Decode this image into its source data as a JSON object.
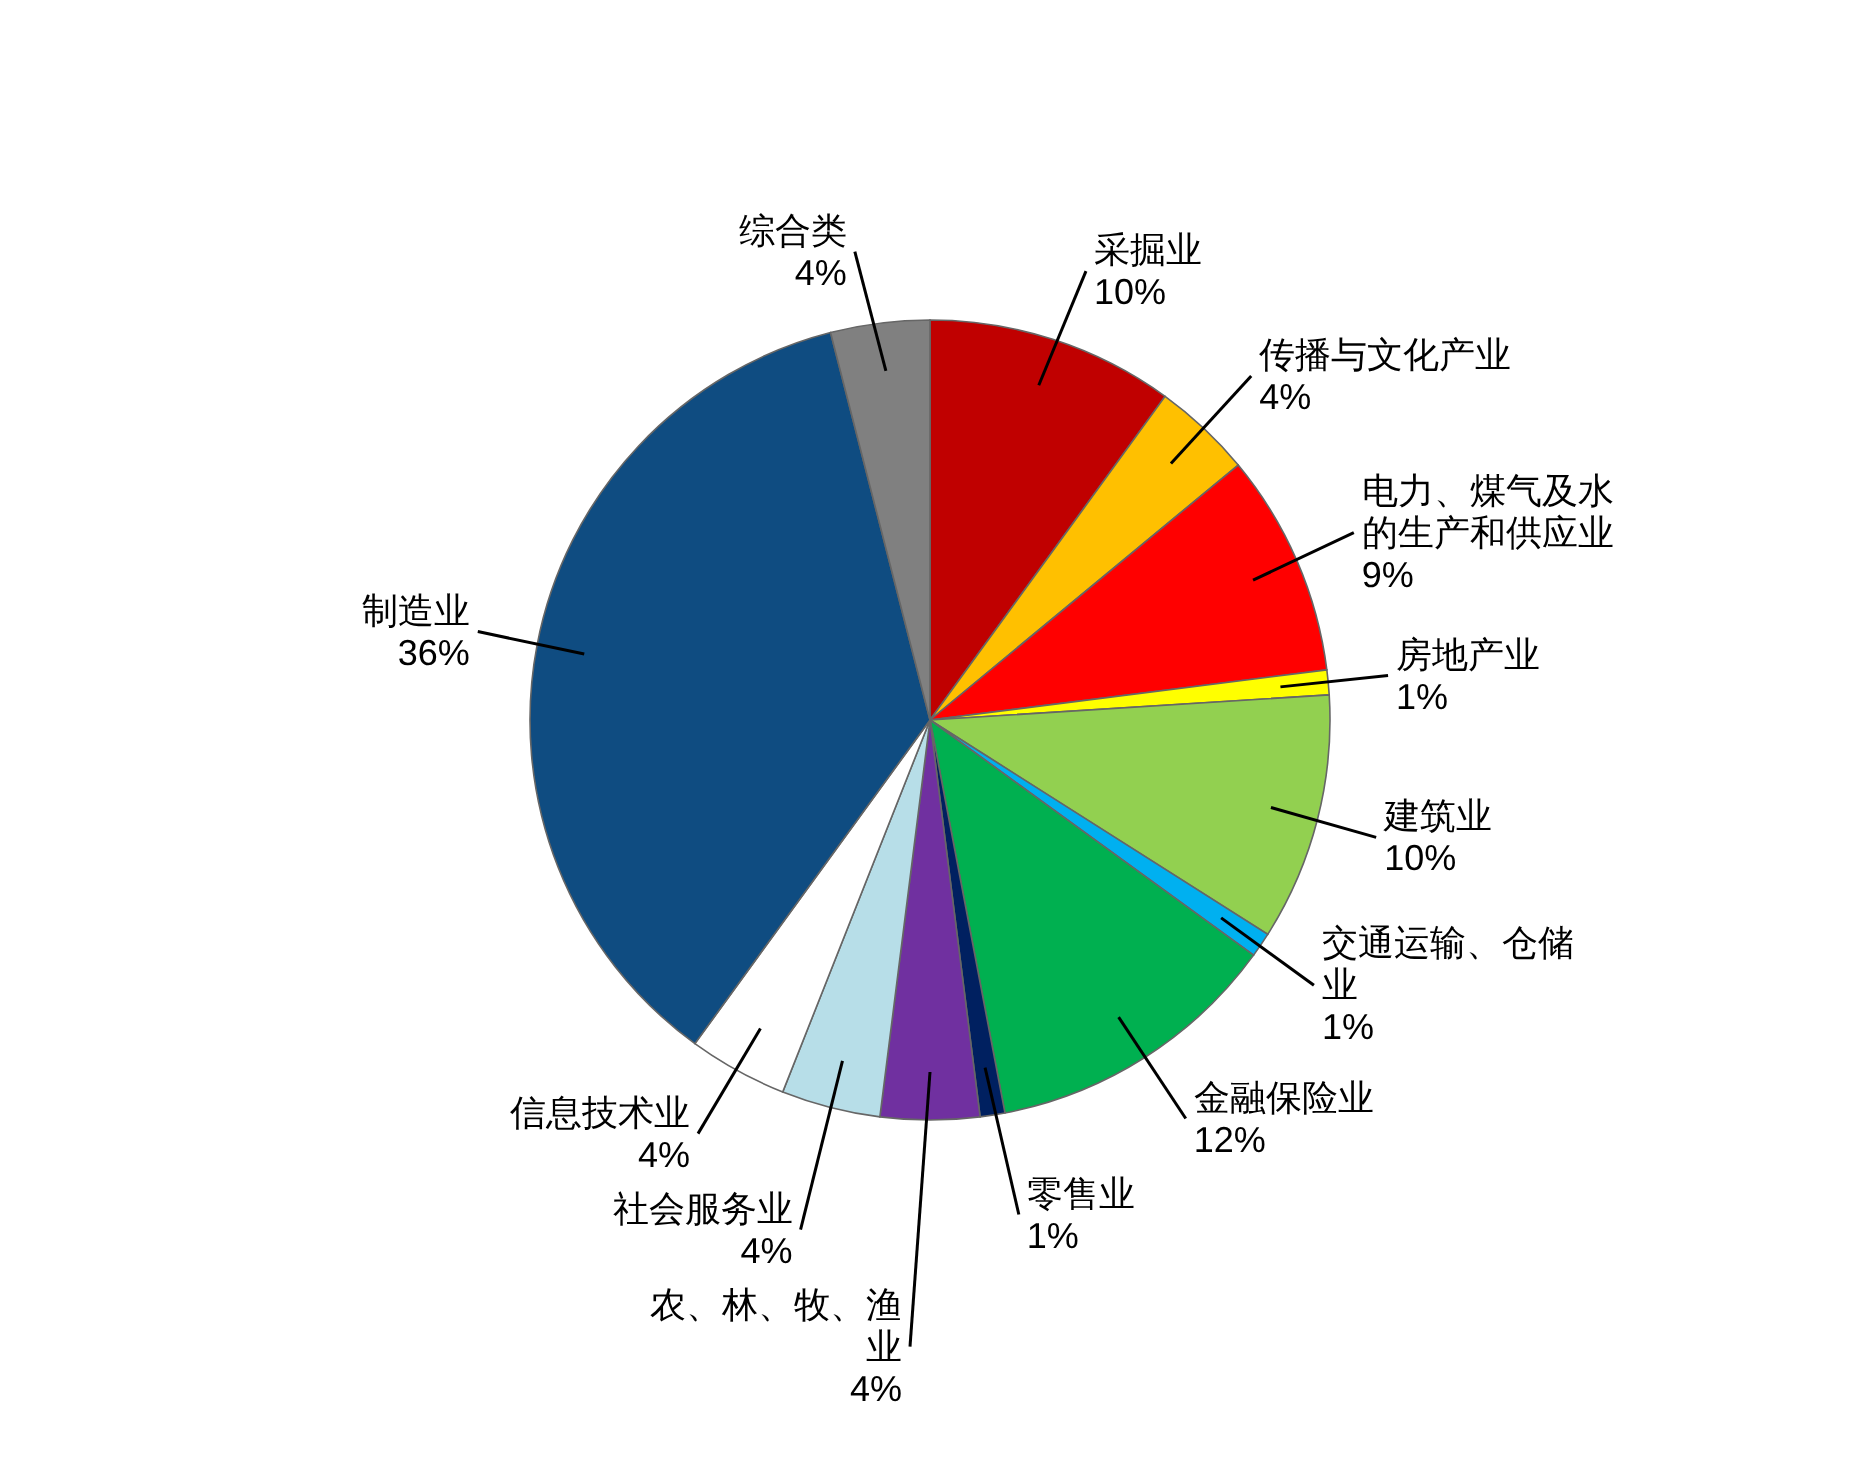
{
  "chart_data": {
    "type": "pie",
    "categories": [
      "采掘业",
      "传播与文化产业",
      "电力、煤气及水的生产和供应业",
      "房地产业",
      "建筑业",
      "交通运输、仓储业",
      "金融保险业",
      "零售业",
      "农、林、牧、渔业",
      "社会服务业",
      "信息技术业",
      "制造业",
      "综合类"
    ],
    "values": [
      10,
      4,
      9,
      1,
      10,
      1,
      12,
      1,
      4,
      4,
      4,
      36,
      4
    ],
    "value_labels": [
      "10%",
      "4%",
      "9%",
      "1%",
      "10%",
      "1%",
      "12%",
      "1%",
      "4%",
      "4%",
      "4%",
      "36%",
      "4%"
    ],
    "colors": [
      "#c00000",
      "#ffc000",
      "#ff0000",
      "#ffff00",
      "#92d050",
      "#00b0f0",
      "#00b050",
      "#002060",
      "#7030a0",
      "#b7dee8",
      "#ffffff",
      "#0f4c81",
      "#808080"
    ],
    "legend": false
  }
}
